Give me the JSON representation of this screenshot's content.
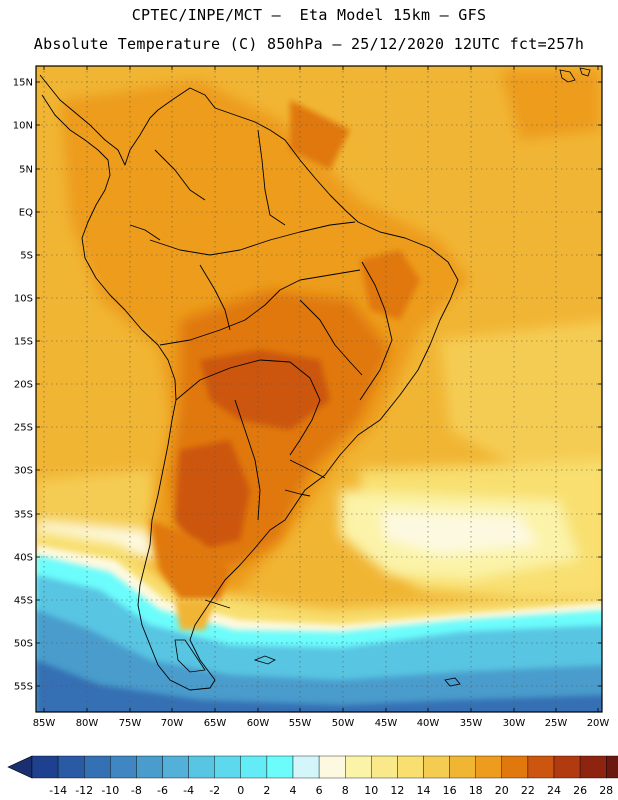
{
  "header": {
    "line1": "CPTEC/INPE/MCT –  Eta Model 15km – GFS",
    "line2": "Absolute Temperature (C) 850hPa – 25/12/2020 12UTC fct=257h"
  },
  "latitude_labels": [
    "15N",
    "10N",
    "5N",
    "EQ",
    "5S",
    "10S",
    "15S",
    "20S",
    "25S",
    "30S",
    "35S",
    "40S",
    "45S",
    "50S",
    "55S"
  ],
  "longitude_labels": [
    "85W",
    "80W",
    "75W",
    "70W",
    "65W",
    "60W",
    "55W",
    "50W",
    "45W",
    "40W",
    "35W",
    "30W",
    "25W",
    "20W"
  ],
  "colorbar": {
    "labels": [
      "-14",
      "-12",
      "-10",
      "-8",
      "-6",
      "-4",
      "-2",
      "0",
      "2",
      "4",
      "6",
      "8",
      "10",
      "12",
      "14",
      "16",
      "18",
      "20",
      "22",
      "24",
      "26",
      "28"
    ],
    "colors": [
      "#1f3f8f",
      "#2a5aa4",
      "#3470b4",
      "#3f86c2",
      "#4a9ccc",
      "#53b0d8",
      "#58c5e2",
      "#5ed8ec",
      "#64ecf6",
      "#6cfcfc",
      "#d2f6fa",
      "#fdf9e0",
      "#fbf3a8",
      "#f9e98a",
      "#f8df70",
      "#f5cc52",
      "#f1b534",
      "#ed9c1e",
      "#e0780e",
      "#cc5610",
      "#b13a10",
      "#8e2410",
      "#6a1810"
    ],
    "left_arrow_color": "#1a2f6f",
    "right_arrow_color": "#5a0f10"
  }
}
